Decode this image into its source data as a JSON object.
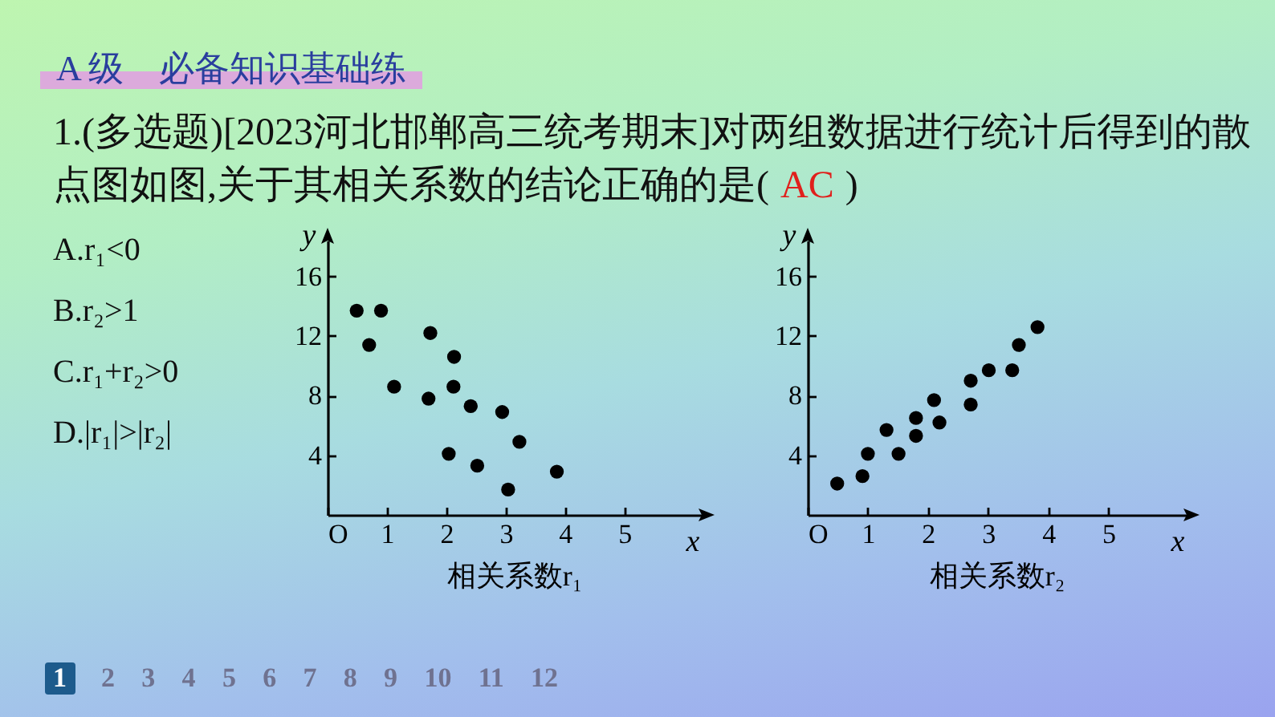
{
  "chart_data": [
    {
      "type": "other",
      "title": "A 级　必备知识基础练",
      "subtitle": "1.(多选题)[2023河北邯郸高三统考期末]对两组数据进行统计后得到的散点图如图,关于其相关系数的结论正确的是(",
      "annotations": [
        "AC",
        ")",
        "A.r₁<0",
        "B.r₂>1",
        "C.r₁+r₂>0",
        "D.|r₁|>|r₂|",
        "1",
        "2 3 4 5 6 7 8 9 10 11 12"
      ]
    },
    {
      "type": "scatter",
      "title": "相关系数r₁",
      "xlabel": "x",
      "ylabel": "y",
      "x": [
        0.49,
        0.7,
        0.9,
        1.12,
        1.7,
        1.73,
        2.04,
        2.12,
        2.13,
        2.41,
        2.52,
        2.94,
        3.04,
        3.23,
        3.86
      ],
      "series": [
        {
          "color": "#000000",
          "values": [
            13.7,
            11.4,
            13.7,
            8.6,
            7.8,
            12.2,
            4.1,
            8.6,
            10.6,
            7.3,
            3.3,
            6.9,
            1.7,
            4.9,
            2.9
          ]
        }
      ],
      "xlim": [
        0,
        6.3
      ],
      "ylim": [
        0,
        18.4
      ],
      "xticks": [
        {
          "value": 0,
          "label": "O"
        },
        1,
        2,
        3,
        4,
        5
      ],
      "yticks": [
        4,
        8,
        12,
        16
      ],
      "marker": "circle"
    },
    {
      "type": "scatter",
      "title": "相关系数r₂",
      "xlabel": "x",
      "ylabel": "y",
      "x": [
        0.49,
        0.91,
        1.0,
        1.31,
        1.51,
        1.8,
        1.8,
        2.1,
        2.19,
        2.71,
        2.71,
        3.01,
        3.4,
        3.51,
        3.82
      ],
      "series": [
        {
          "color": "#000000",
          "values": [
            2.1,
            2.6,
            4.1,
            5.7,
            4.1,
            5.3,
            6.5,
            7.7,
            6.2,
            7.4,
            9.0,
            9.7,
            9.7,
            11.4,
            12.6
          ]
        }
      ],
      "xlim": [
        0,
        6.3
      ],
      "ylim": [
        0,
        18.4
      ],
      "xticks": [
        {
          "value": 0,
          "label": "O"
        },
        1,
        2,
        3,
        4,
        5
      ],
      "yticks": [
        4,
        8,
        12,
        16
      ],
      "marker": "circle"
    }
  ]
}
